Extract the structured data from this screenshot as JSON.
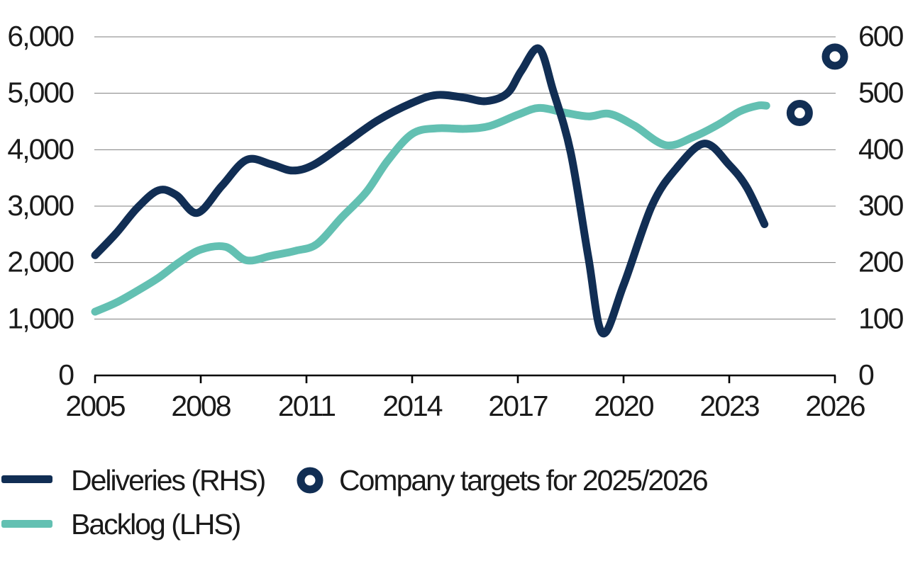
{
  "chart_data": {
    "type": "line",
    "title": "",
    "x_axis": {
      "range": [
        2005,
        2026
      ],
      "ticks": [
        {
          "value": 2005,
          "label": "2005"
        },
        {
          "value": 2008,
          "label": "2008"
        },
        {
          "value": 2011,
          "label": "2011"
        },
        {
          "value": 2014,
          "label": "2014"
        },
        {
          "value": 2017,
          "label": "2017"
        },
        {
          "value": 2020,
          "label": "2020"
        },
        {
          "value": 2023,
          "label": "2023"
        },
        {
          "value": 2026,
          "label": "2026"
        }
      ]
    },
    "left_axis": {
      "used_by": "Backlog (LHS)",
      "range": [
        0,
        6000
      ],
      "ticks": [
        {
          "value": 0,
          "label": "0"
        },
        {
          "value": 1000,
          "label": "1,000"
        },
        {
          "value": 2000,
          "label": "2,000"
        },
        {
          "value": 3000,
          "label": "3,000"
        },
        {
          "value": 4000,
          "label": "4,000"
        },
        {
          "value": 5000,
          "label": "5,000"
        },
        {
          "value": 6000,
          "label": "6,000"
        }
      ]
    },
    "right_axis": {
      "used_by": "Deliveries (RHS)",
      "range": [
        0,
        600
      ],
      "ticks": [
        {
          "value": 0,
          "label": "0"
        },
        {
          "value": 100,
          "label": "100"
        },
        {
          "value": 200,
          "label": "200"
        },
        {
          "value": 300,
          "label": "300"
        },
        {
          "value": 400,
          "label": "400"
        },
        {
          "value": 500,
          "label": "500"
        },
        {
          "value": 600,
          "label": "600"
        }
      ]
    },
    "grid": true,
    "legend_position": "bottom-left",
    "series": [
      {
        "name": "Deliveries (RHS)",
        "axis": "right",
        "color": "#112E54",
        "points": [
          [
            2005.0,
            213
          ],
          [
            2005.6,
            252
          ],
          [
            2006.2,
            297
          ],
          [
            2006.8,
            328
          ],
          [
            2007.3,
            320
          ],
          [
            2007.9,
            288
          ],
          [
            2008.6,
            336
          ],
          [
            2009.3,
            382
          ],
          [
            2010.0,
            374
          ],
          [
            2010.6,
            363
          ],
          [
            2011.2,
            373
          ],
          [
            2012.0,
            407
          ],
          [
            2013.0,
            451
          ],
          [
            2014.0,
            483
          ],
          [
            2014.7,
            497
          ],
          [
            2015.5,
            492
          ],
          [
            2016.1,
            486
          ],
          [
            2016.7,
            500
          ],
          [
            2017.1,
            540
          ],
          [
            2017.6,
            579
          ],
          [
            2018.0,
            505
          ],
          [
            2018.5,
            395
          ],
          [
            2019.0,
            210
          ],
          [
            2019.4,
            75
          ],
          [
            2020.0,
            160
          ],
          [
            2020.8,
            300
          ],
          [
            2021.5,
            367
          ],
          [
            2022.3,
            411
          ],
          [
            2023.0,
            373
          ],
          [
            2023.5,
            333
          ],
          [
            2024.0,
            268
          ]
        ]
      },
      {
        "name": "Backlog (LHS)",
        "axis": "left",
        "color": "#63C0B2",
        "points": [
          [
            2005.0,
            1130
          ],
          [
            2005.6,
            1290
          ],
          [
            2006.2,
            1500
          ],
          [
            2006.8,
            1730
          ],
          [
            2007.4,
            2010
          ],
          [
            2008.0,
            2230
          ],
          [
            2008.7,
            2280
          ],
          [
            2009.3,
            2040
          ],
          [
            2010.0,
            2120
          ],
          [
            2010.7,
            2210
          ],
          [
            2011.3,
            2330
          ],
          [
            2012.0,
            2800
          ],
          [
            2012.7,
            3250
          ],
          [
            2013.3,
            3800
          ],
          [
            2014.0,
            4280
          ],
          [
            2014.7,
            4380
          ],
          [
            2015.5,
            4370
          ],
          [
            2016.2,
            4420
          ],
          [
            2017.0,
            4620
          ],
          [
            2017.6,
            4740
          ],
          [
            2018.3,
            4660
          ],
          [
            2019.0,
            4590
          ],
          [
            2019.6,
            4635
          ],
          [
            2020.3,
            4430
          ],
          [
            2021.2,
            4080
          ],
          [
            2022.0,
            4230
          ],
          [
            2022.7,
            4450
          ],
          [
            2023.3,
            4680
          ],
          [
            2023.8,
            4780
          ],
          [
            2024.05,
            4780
          ]
        ]
      }
    ],
    "targets": {
      "name": "Company targets for 2025/2026",
      "axis": "right",
      "color": "#112E54",
      "points": [
        {
          "year": 2025,
          "value": 465
        },
        {
          "year": 2026,
          "value": 565
        }
      ]
    }
  },
  "legend": {
    "items": [
      {
        "id": "deliveries",
        "swatch": "line",
        "color": "#112E54",
        "label": "Deliveries (RHS)"
      },
      {
        "id": "backlog",
        "swatch": "line",
        "color": "#63C0B2",
        "label": "Backlog (LHS)"
      },
      {
        "id": "targets",
        "swatch": "ring",
        "color": "#112E54",
        "label": "Company targets for 2025/2026"
      }
    ]
  },
  "colors": {
    "navy": "#112E54",
    "teal": "#63C0B2",
    "grid": "#7F7F7F",
    "axis": "#000000",
    "text": "#1A1A1A",
    "background": "#FFFFFF"
  }
}
